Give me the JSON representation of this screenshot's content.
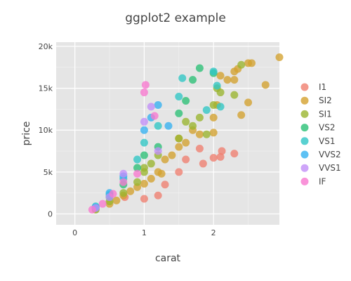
{
  "chart_data": {
    "type": "scatter",
    "title": "ggplot2 example",
    "xlabel": "carat",
    "ylabel": "price",
    "xlim": [
      -0.27,
      2.95
    ],
    "ylim": [
      -1300,
      20500
    ],
    "x_ticks": [
      {
        "value": 0,
        "label": "0"
      },
      {
        "value": 1,
        "label": "1"
      },
      {
        "value": 2,
        "label": "2"
      }
    ],
    "y_ticks": [
      {
        "value": 0,
        "label": "0"
      },
      {
        "value": 5000,
        "label": "5k"
      },
      {
        "value": 10000,
        "label": "10k"
      },
      {
        "value": 15000,
        "label": "15k"
      },
      {
        "value": 20000,
        "label": "20k"
      }
    ],
    "grid": true,
    "legend_position": "right",
    "plot_background": "#e5e5e5",
    "series": [
      {
        "name": "I1",
        "color": "#f07f6f",
        "points": [
          [
            1.0,
            1800
          ],
          [
            1.2,
            2200
          ],
          [
            1.3,
            3500
          ],
          [
            1.5,
            5000
          ],
          [
            1.6,
            6500
          ],
          [
            1.8,
            7800
          ],
          [
            1.85,
            6000
          ],
          [
            2.0,
            6700
          ],
          [
            2.1,
            6800
          ],
          [
            2.12,
            7500
          ],
          [
            2.3,
            7200
          ],
          [
            0.72,
            2000
          ]
        ]
      },
      {
        "name": "SI2",
        "color": "#d4a12e",
        "points": [
          [
            0.3,
            600
          ],
          [
            0.5,
            1200
          ],
          [
            0.6,
            1600
          ],
          [
            0.7,
            2200
          ],
          [
            0.8,
            2700
          ],
          [
            0.9,
            3200
          ],
          [
            1.0,
            3600
          ],
          [
            1.1,
            4200
          ],
          [
            1.2,
            5000
          ],
          [
            1.25,
            4800
          ],
          [
            1.3,
            6500
          ],
          [
            1.4,
            7000
          ],
          [
            1.5,
            8000
          ],
          [
            1.5,
            9000
          ],
          [
            1.6,
            8500
          ],
          [
            1.7,
            10000
          ],
          [
            1.8,
            9500
          ],
          [
            2.0,
            9700
          ],
          [
            2.0,
            11500
          ],
          [
            2.05,
            13000
          ],
          [
            2.1,
            16500
          ],
          [
            2.2,
            16000
          ],
          [
            2.3,
            16000
          ],
          [
            2.3,
            17000
          ],
          [
            2.35,
            17300
          ],
          [
            2.5,
            18000
          ],
          [
            2.55,
            18000
          ],
          [
            2.5,
            13300
          ],
          [
            2.4,
            11800
          ],
          [
            2.75,
            15400
          ],
          [
            2.95,
            18700
          ]
        ]
      },
      {
        "name": "SI1",
        "color": "#9ab52e",
        "points": [
          [
            0.3,
            500
          ],
          [
            0.5,
            1500
          ],
          [
            0.7,
            2500
          ],
          [
            0.9,
            3800
          ],
          [
            1.0,
            5000
          ],
          [
            1.0,
            5500
          ],
          [
            1.1,
            6000
          ],
          [
            1.2,
            7000
          ],
          [
            1.5,
            9000
          ],
          [
            1.6,
            11000
          ],
          [
            1.7,
            10500
          ],
          [
            1.8,
            11500
          ],
          [
            1.9,
            9500
          ],
          [
            2.0,
            13000
          ],
          [
            2.05,
            15000
          ],
          [
            2.1,
            14500
          ],
          [
            2.3,
            14200
          ],
          [
            2.4,
            17800
          ]
        ]
      },
      {
        "name": "VS2",
        "color": "#2bc076",
        "points": [
          [
            0.3,
            700
          ],
          [
            0.5,
            2000
          ],
          [
            0.7,
            3500
          ],
          [
            0.9,
            5500
          ],
          [
            1.0,
            7000
          ],
          [
            1.2,
            8000
          ],
          [
            1.5,
            12000
          ],
          [
            1.6,
            13500
          ],
          [
            1.7,
            16000
          ],
          [
            1.8,
            17400
          ],
          [
            2.0,
            16800
          ]
        ]
      },
      {
        "name": "VS1",
        "color": "#2fc6c5",
        "points": [
          [
            0.3,
            900
          ],
          [
            0.5,
            2300
          ],
          [
            0.7,
            4200
          ],
          [
            0.9,
            6500
          ],
          [
            1.0,
            8500
          ],
          [
            1.2,
            10500
          ],
          [
            1.5,
            14000
          ],
          [
            1.55,
            16200
          ],
          [
            1.9,
            12400
          ],
          [
            2.0,
            17000
          ],
          [
            2.05,
            15300
          ],
          [
            2.1,
            12800
          ]
        ]
      },
      {
        "name": "VVS2",
        "color": "#35b1f1",
        "points": [
          [
            0.3,
            800
          ],
          [
            0.5,
            2500
          ],
          [
            0.7,
            4500
          ],
          [
            1.0,
            10000
          ],
          [
            1.1,
            11500
          ],
          [
            1.2,
            13000
          ],
          [
            1.35,
            10500
          ]
        ]
      },
      {
        "name": "VVS1",
        "color": "#c28ef8",
        "points": [
          [
            0.3,
            700
          ],
          [
            0.5,
            2000
          ],
          [
            0.7,
            4800
          ],
          [
            1.0,
            11000
          ],
          [
            1.1,
            12800
          ],
          [
            1.2,
            7500
          ]
        ]
      },
      {
        "name": "IF",
        "color": "#f878d0",
        "points": [
          [
            0.25,
            500
          ],
          [
            0.4,
            1200
          ],
          [
            0.55,
            2400
          ],
          [
            0.7,
            3800
          ],
          [
            0.9,
            4800
          ],
          [
            1.0,
            14500
          ],
          [
            1.02,
            15400
          ],
          [
            1.15,
            11700
          ]
        ]
      }
    ]
  }
}
